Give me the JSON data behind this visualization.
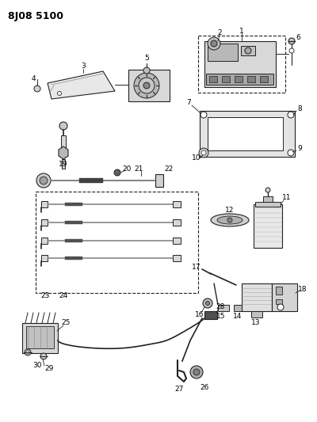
{
  "title": "8J08 5100",
  "bg_color": "#ffffff",
  "fig_width": 4.0,
  "fig_height": 5.33,
  "dpi": 100,
  "lc": "#222222",
  "gray1": "#c0c0c0",
  "gray2": "#a0a0a0",
  "gray3": "#606060",
  "gray4": "#e0e0e0"
}
